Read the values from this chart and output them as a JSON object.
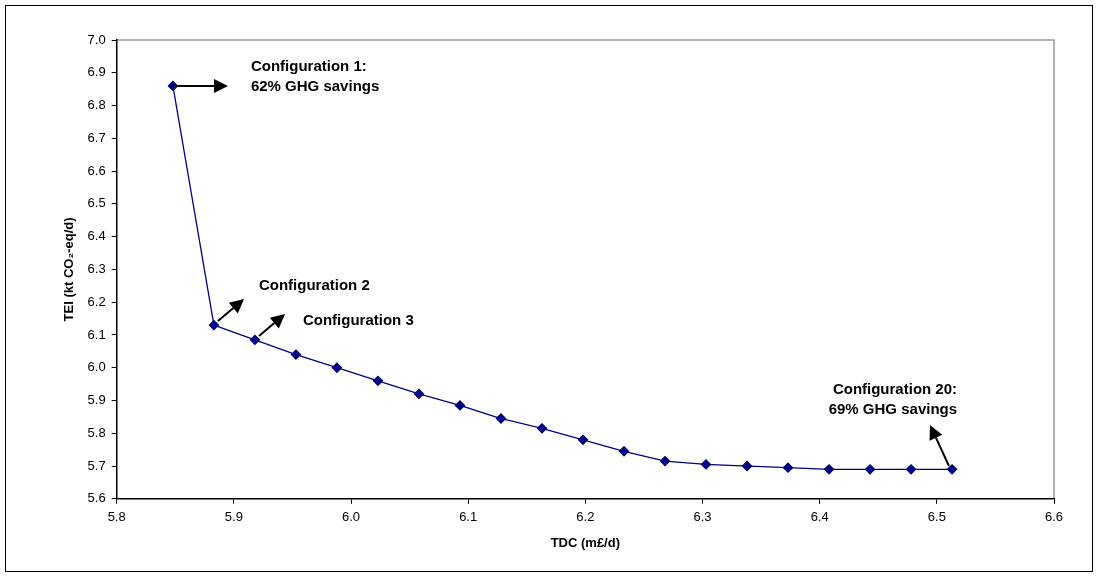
{
  "chart_data": {
    "type": "line",
    "xlabel": "TDC (m£/d)",
    "ylabel": "TEI (kt CO₂-eq/d)",
    "marker": "diamond",
    "grid": false,
    "legend": false,
    "series": [
      {
        "color": "#000080",
        "x": [
          5.848,
          5.883,
          5.918,
          5.953,
          5.988,
          6.023,
          6.058,
          6.093,
          6.128,
          6.163,
          6.198,
          6.233,
          6.268,
          6.303,
          6.338,
          6.373,
          6.408,
          6.443,
          6.478,
          6.513
        ],
        "values": [
          6.86,
          6.13,
          6.085,
          6.04,
          6.0,
          5.96,
          5.92,
          5.885,
          5.845,
          5.815,
          5.78,
          5.745,
          5.715,
          5.705,
          5.7,
          5.695,
          5.69,
          5.69,
          5.69,
          5.69
        ]
      }
    ],
    "xlim": [
      5.8,
      6.6
    ],
    "ylim": [
      5.6,
      7.0
    ],
    "xticks": [
      {
        "value": 5.8,
        "label": "5.8"
      },
      {
        "value": 5.9,
        "label": "5.9"
      },
      {
        "value": 6.0,
        "label": "6.0"
      },
      {
        "value": 6.1,
        "label": "6.1"
      },
      {
        "value": 6.2,
        "label": "6.2"
      },
      {
        "value": 6.3,
        "label": "6.3"
      },
      {
        "value": 6.4,
        "label": "6.4"
      },
      {
        "value": 6.5,
        "label": "6.5"
      },
      {
        "value": 6.6,
        "label": "6.6"
      }
    ],
    "yticks": [
      {
        "value": 5.6,
        "label": "5.6"
      },
      {
        "value": 5.7,
        "label": "5.7"
      },
      {
        "value": 5.8,
        "label": "5.8"
      },
      {
        "value": 5.9,
        "label": "5.9"
      },
      {
        "value": 6.0,
        "label": "6.0"
      },
      {
        "value": 6.1,
        "label": "6.1"
      },
      {
        "value": 6.2,
        "label": "6.2"
      },
      {
        "value": 6.3,
        "label": "6.3"
      },
      {
        "value": 6.4,
        "label": "6.4"
      },
      {
        "value": 6.5,
        "label": "6.5"
      },
      {
        "value": 6.6,
        "label": "6.6"
      },
      {
        "value": 6.7,
        "label": "6.7"
      },
      {
        "value": 6.8,
        "label": "6.8"
      },
      {
        "value": 6.9,
        "label": "6.9"
      },
      {
        "value": 7.0,
        "label": "7.0"
      }
    ],
    "annotations": [
      "Configuration 1:\n62% GHG savings",
      "Configuration 2",
      "Configuration 3",
      "Configuration 20:\n69% GHG savings"
    ]
  }
}
